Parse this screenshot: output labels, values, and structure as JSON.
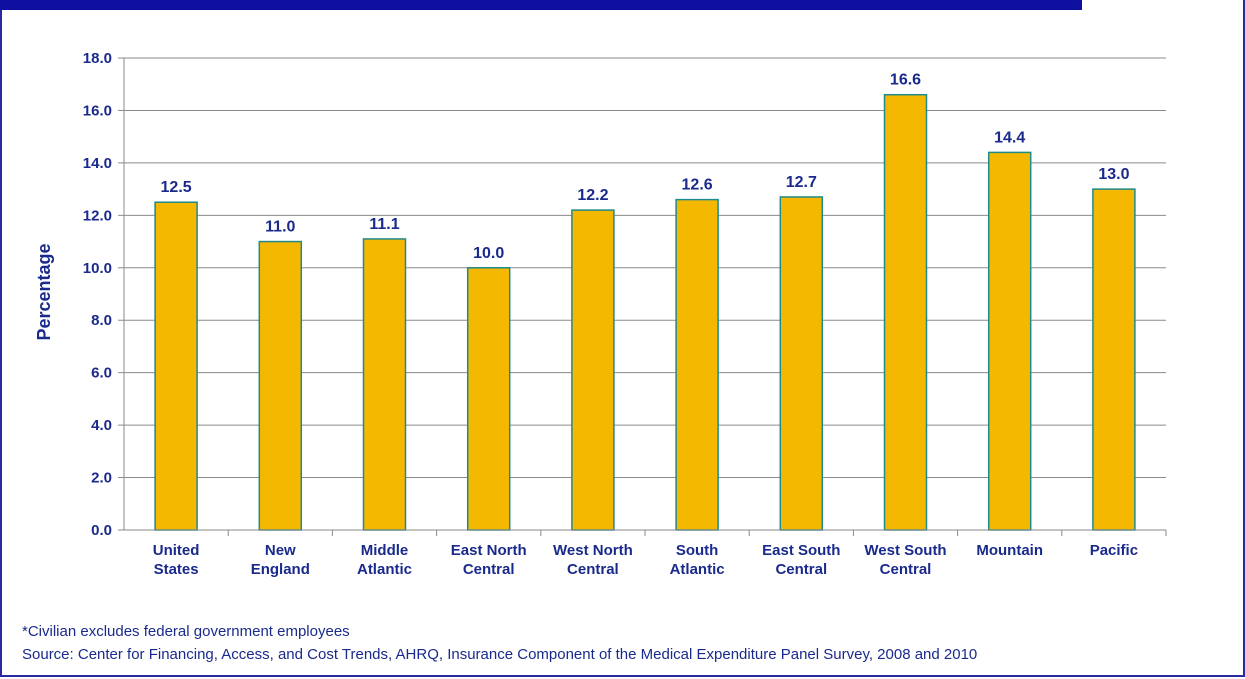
{
  "colors": {
    "bar_fill": "#f5b800",
    "bar_stroke": "#1f8a8a",
    "text": "#1a2a8c",
    "grid": "#8a8a8a",
    "frame": "#1010a0"
  },
  "footnotes": {
    "note": "*Civilian excludes federal government employees",
    "source": "Source: Center for Financing, Access, and Cost Trends, AHRQ, Insurance Component of the Medical Expenditure Panel Survey, 2008 and 2010"
  },
  "chart_data": {
    "type": "bar",
    "title": "",
    "xlabel": "",
    "ylabel": "Percentage",
    "ylim": [
      0,
      18
    ],
    "yticks": [
      "0.0",
      "2.0",
      "4.0",
      "6.0",
      "8.0",
      "10.0",
      "12.0",
      "14.0",
      "16.0",
      "18.0"
    ],
    "grid": true,
    "categories": [
      [
        "United",
        "States"
      ],
      [
        "New",
        "England"
      ],
      [
        "Middle",
        "Atlantic"
      ],
      [
        "East North",
        "Central"
      ],
      [
        "West North",
        "Central"
      ],
      [
        "South",
        "Atlantic"
      ],
      [
        "East South",
        "Central"
      ],
      [
        "West South",
        "Central"
      ],
      [
        "Mountain"
      ],
      [
        "Pacific"
      ]
    ],
    "values": [
      12.5,
      11.0,
      11.1,
      10.0,
      12.2,
      12.6,
      12.7,
      16.6,
      14.4,
      13.0
    ],
    "value_labels": [
      "12.5",
      "11.0",
      "11.1",
      "10.0",
      "12.2",
      "12.6",
      "12.7",
      "16.6",
      "14.4",
      "13.0"
    ]
  }
}
